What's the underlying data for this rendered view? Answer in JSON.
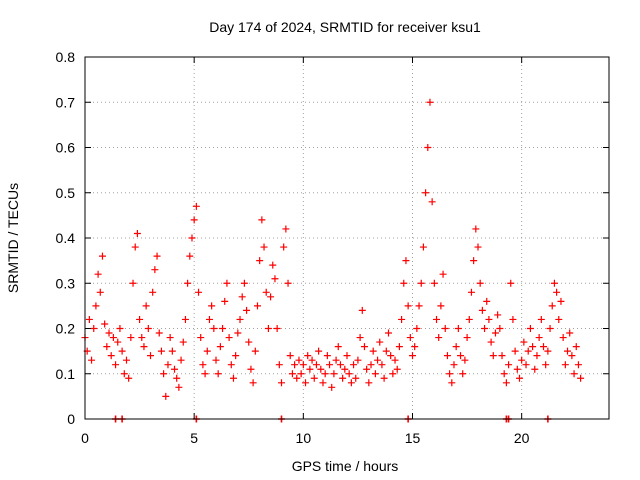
{
  "chart_data": {
    "type": "scatter",
    "title": "Day 174 of 2024, SRMTID for receiver ksu1",
    "xlabel": "GPS time / hours",
    "ylabel": "SRMTID / TECUs",
    "xlim": [
      0,
      24
    ],
    "ylim": [
      0,
      0.8
    ],
    "grid": true,
    "marker": "+",
    "color": "#ff0000",
    "x_ticks": [
      0,
      5,
      10,
      15,
      20
    ],
    "x_tick_labels": [
      "0",
      "5",
      "10",
      "15",
      "20"
    ],
    "y_ticks": [
      0,
      0.1,
      0.2,
      0.3,
      0.4,
      0.5,
      0.6,
      0.7,
      0.8
    ],
    "y_tick_labels": [
      "0",
      "0.1",
      "0.2",
      "0.3",
      "0.4",
      "0.5",
      "0.6",
      "0.7",
      "0.8"
    ],
    "series": [
      {
        "name": "SRMTID",
        "points": [
          [
            0.0,
            0.18
          ],
          [
            0.1,
            0.15
          ],
          [
            0.2,
            0.22
          ],
          [
            0.3,
            0.13
          ],
          [
            0.4,
            0.2
          ],
          [
            0.5,
            0.25
          ],
          [
            0.6,
            0.32
          ],
          [
            0.7,
            0.28
          ],
          [
            0.8,
            0.36
          ],
          [
            0.9,
            0.21
          ],
          [
            1.0,
            0.16
          ],
          [
            1.1,
            0.19
          ],
          [
            1.2,
            0.14
          ],
          [
            1.3,
            0.18
          ],
          [
            1.4,
            0.12
          ],
          [
            1.5,
            0.17
          ],
          [
            1.6,
            0.2
          ],
          [
            1.7,
            0.15
          ],
          [
            1.8,
            0.1
          ],
          [
            1.9,
            0.13
          ],
          [
            2.0,
            0.09
          ],
          [
            2.1,
            0.18
          ],
          [
            2.2,
            0.3
          ],
          [
            2.3,
            0.38
          ],
          [
            2.4,
            0.41
          ],
          [
            2.5,
            0.22
          ],
          [
            2.6,
            0.18
          ],
          [
            2.7,
            0.16
          ],
          [
            2.8,
            0.25
          ],
          [
            2.9,
            0.2
          ],
          [
            3.0,
            0.14
          ],
          [
            3.1,
            0.28
          ],
          [
            3.2,
            0.33
          ],
          [
            3.3,
            0.36
          ],
          [
            3.4,
            0.19
          ],
          [
            3.5,
            0.15
          ],
          [
            3.6,
            0.1
          ],
          [
            3.7,
            0.05
          ],
          [
            3.8,
            0.12
          ],
          [
            3.9,
            0.18
          ],
          [
            4.0,
            0.15
          ],
          [
            4.1,
            0.11
          ],
          [
            4.2,
            0.09
          ],
          [
            4.3,
            0.07
          ],
          [
            4.4,
            0.13
          ],
          [
            4.5,
            0.17
          ],
          [
            4.6,
            0.22
          ],
          [
            4.7,
            0.3
          ],
          [
            4.8,
            0.36
          ],
          [
            4.9,
            0.4
          ],
          [
            5.0,
            0.44
          ],
          [
            5.1,
            0.47
          ],
          [
            5.2,
            0.28
          ],
          [
            5.3,
            0.18
          ],
          [
            5.4,
            0.12
          ],
          [
            5.5,
            0.1
          ],
          [
            5.6,
            0.15
          ],
          [
            5.7,
            0.22
          ],
          [
            5.8,
            0.25
          ],
          [
            5.9,
            0.2
          ],
          [
            6.0,
            0.13
          ],
          [
            6.1,
            0.1
          ],
          [
            6.2,
            0.16
          ],
          [
            6.3,
            0.2
          ],
          [
            6.4,
            0.26
          ],
          [
            6.5,
            0.3
          ],
          [
            6.6,
            0.18
          ],
          [
            6.7,
            0.12
          ],
          [
            6.8,
            0.09
          ],
          [
            6.9,
            0.14
          ],
          [
            7.0,
            0.19
          ],
          [
            7.1,
            0.22
          ],
          [
            7.2,
            0.27
          ],
          [
            7.3,
            0.3
          ],
          [
            7.4,
            0.24
          ],
          [
            7.5,
            0.17
          ],
          [
            7.6,
            0.11
          ],
          [
            7.7,
            0.08
          ],
          [
            7.8,
            0.15
          ],
          [
            7.9,
            0.25
          ],
          [
            8.0,
            0.35
          ],
          [
            8.1,
            0.44
          ],
          [
            8.2,
            0.38
          ],
          [
            8.3,
            0.28
          ],
          [
            8.4,
            0.2
          ],
          [
            8.5,
            0.27
          ],
          [
            8.6,
            0.34
          ],
          [
            8.7,
            0.31
          ],
          [
            8.8,
            0.2
          ],
          [
            8.9,
            0.12
          ],
          [
            9.0,
            0.08
          ],
          [
            9.1,
            0.38
          ],
          [
            9.2,
            0.42
          ],
          [
            9.3,
            0.3
          ],
          [
            9.4,
            0.14
          ],
          [
            9.5,
            0.1
          ],
          [
            9.6,
            0.12
          ],
          [
            9.7,
            0.09
          ],
          [
            9.8,
            0.13
          ],
          [
            9.9,
            0.1
          ],
          [
            10.0,
            0.12
          ],
          [
            10.1,
            0.08
          ],
          [
            10.2,
            0.14
          ],
          [
            10.3,
            0.11
          ],
          [
            10.4,
            0.13
          ],
          [
            10.5,
            0.09
          ],
          [
            10.6,
            0.12
          ],
          [
            10.7,
            0.15
          ],
          [
            10.8,
            0.11
          ],
          [
            10.9,
            0.08
          ],
          [
            11.0,
            0.1
          ],
          [
            11.1,
            0.14
          ],
          [
            11.2,
            0.12
          ],
          [
            11.3,
            0.07
          ],
          [
            11.4,
            0.1
          ],
          [
            11.5,
            0.13
          ],
          [
            11.6,
            0.16
          ],
          [
            11.7,
            0.12
          ],
          [
            11.8,
            0.09
          ],
          [
            11.9,
            0.11
          ],
          [
            12.0,
            0.14
          ],
          [
            12.1,
            0.1
          ],
          [
            12.2,
            0.08
          ],
          [
            12.3,
            0.12
          ],
          [
            12.4,
            0.09
          ],
          [
            12.5,
            0.13
          ],
          [
            12.6,
            0.18
          ],
          [
            12.7,
            0.24
          ],
          [
            12.8,
            0.16
          ],
          [
            12.9,
            0.11
          ],
          [
            13.0,
            0.08
          ],
          [
            13.1,
            0.12
          ],
          [
            13.2,
            0.15
          ],
          [
            13.3,
            0.1
          ],
          [
            13.4,
            0.13
          ],
          [
            13.5,
            0.17
          ],
          [
            13.6,
            0.12
          ],
          [
            13.7,
            0.09
          ],
          [
            13.8,
            0.15
          ],
          [
            13.9,
            0.19
          ],
          [
            14.0,
            0.14
          ],
          [
            14.1,
            0.1
          ],
          [
            14.2,
            0.13
          ],
          [
            14.3,
            0.11
          ],
          [
            14.4,
            0.16
          ],
          [
            14.5,
            0.22
          ],
          [
            14.6,
            0.3
          ],
          [
            14.7,
            0.35
          ],
          [
            14.8,
            0.25
          ],
          [
            14.9,
            0.18
          ],
          [
            15.0,
            0.14
          ],
          [
            15.1,
            0.16
          ],
          [
            15.2,
            0.2
          ],
          [
            15.3,
            0.25
          ],
          [
            15.4,
            0.3
          ],
          [
            15.5,
            0.38
          ],
          [
            15.6,
            0.5
          ],
          [
            15.7,
            0.6
          ],
          [
            15.8,
            0.7
          ],
          [
            15.9,
            0.48
          ],
          [
            16.0,
            0.3
          ],
          [
            16.1,
            0.22
          ],
          [
            16.2,
            0.18
          ],
          [
            16.3,
            0.25
          ],
          [
            16.4,
            0.32
          ],
          [
            16.5,
            0.2
          ],
          [
            16.6,
            0.14
          ],
          [
            16.7,
            0.1
          ],
          [
            16.8,
            0.08
          ],
          [
            16.9,
            0.12
          ],
          [
            17.0,
            0.16
          ],
          [
            17.1,
            0.2
          ],
          [
            17.2,
            0.14
          ],
          [
            17.3,
            0.1
          ],
          [
            17.4,
            0.13
          ],
          [
            17.5,
            0.18
          ],
          [
            17.6,
            0.22
          ],
          [
            17.7,
            0.28
          ],
          [
            17.8,
            0.35
          ],
          [
            17.9,
            0.42
          ],
          [
            18.0,
            0.38
          ],
          [
            18.1,
            0.3
          ],
          [
            18.2,
            0.24
          ],
          [
            18.3,
            0.2
          ],
          [
            18.4,
            0.26
          ],
          [
            18.5,
            0.22
          ],
          [
            18.6,
            0.17
          ],
          [
            18.7,
            0.14
          ],
          [
            18.8,
            0.19
          ],
          [
            18.9,
            0.23
          ],
          [
            19.0,
            0.2
          ],
          [
            19.1,
            0.14
          ],
          [
            19.2,
            0.1
          ],
          [
            19.3,
            0.08
          ],
          [
            19.4,
            0.12
          ],
          [
            19.5,
            0.3
          ],
          [
            19.6,
            0.22
          ],
          [
            19.7,
            0.15
          ],
          [
            19.8,
            0.11
          ],
          [
            19.9,
            0.09
          ],
          [
            20.0,
            0.13
          ],
          [
            20.1,
            0.17
          ],
          [
            20.2,
            0.12
          ],
          [
            20.3,
            0.15
          ],
          [
            20.4,
            0.2
          ],
          [
            20.5,
            0.16
          ],
          [
            20.6,
            0.11
          ],
          [
            20.7,
            0.14
          ],
          [
            20.8,
            0.18
          ],
          [
            20.9,
            0.22
          ],
          [
            21.0,
            0.16
          ],
          [
            21.1,
            0.12
          ],
          [
            21.2,
            0.15
          ],
          [
            21.3,
            0.2
          ],
          [
            21.4,
            0.25
          ],
          [
            21.5,
            0.3
          ],
          [
            21.6,
            0.28
          ],
          [
            21.7,
            0.22
          ],
          [
            21.8,
            0.26
          ],
          [
            21.9,
            0.18
          ],
          [
            22.0,
            0.12
          ],
          [
            22.1,
            0.15
          ],
          [
            22.2,
            0.19
          ],
          [
            22.3,
            0.14
          ],
          [
            22.4,
            0.1
          ],
          [
            22.5,
            0.16
          ],
          [
            22.6,
            0.12
          ],
          [
            22.7,
            0.09
          ]
        ],
        "markers_on_axis": [
          1.4,
          1.7,
          5.1,
          9.0,
          14.8,
          19.3,
          19.4,
          21.2
        ]
      }
    ]
  }
}
